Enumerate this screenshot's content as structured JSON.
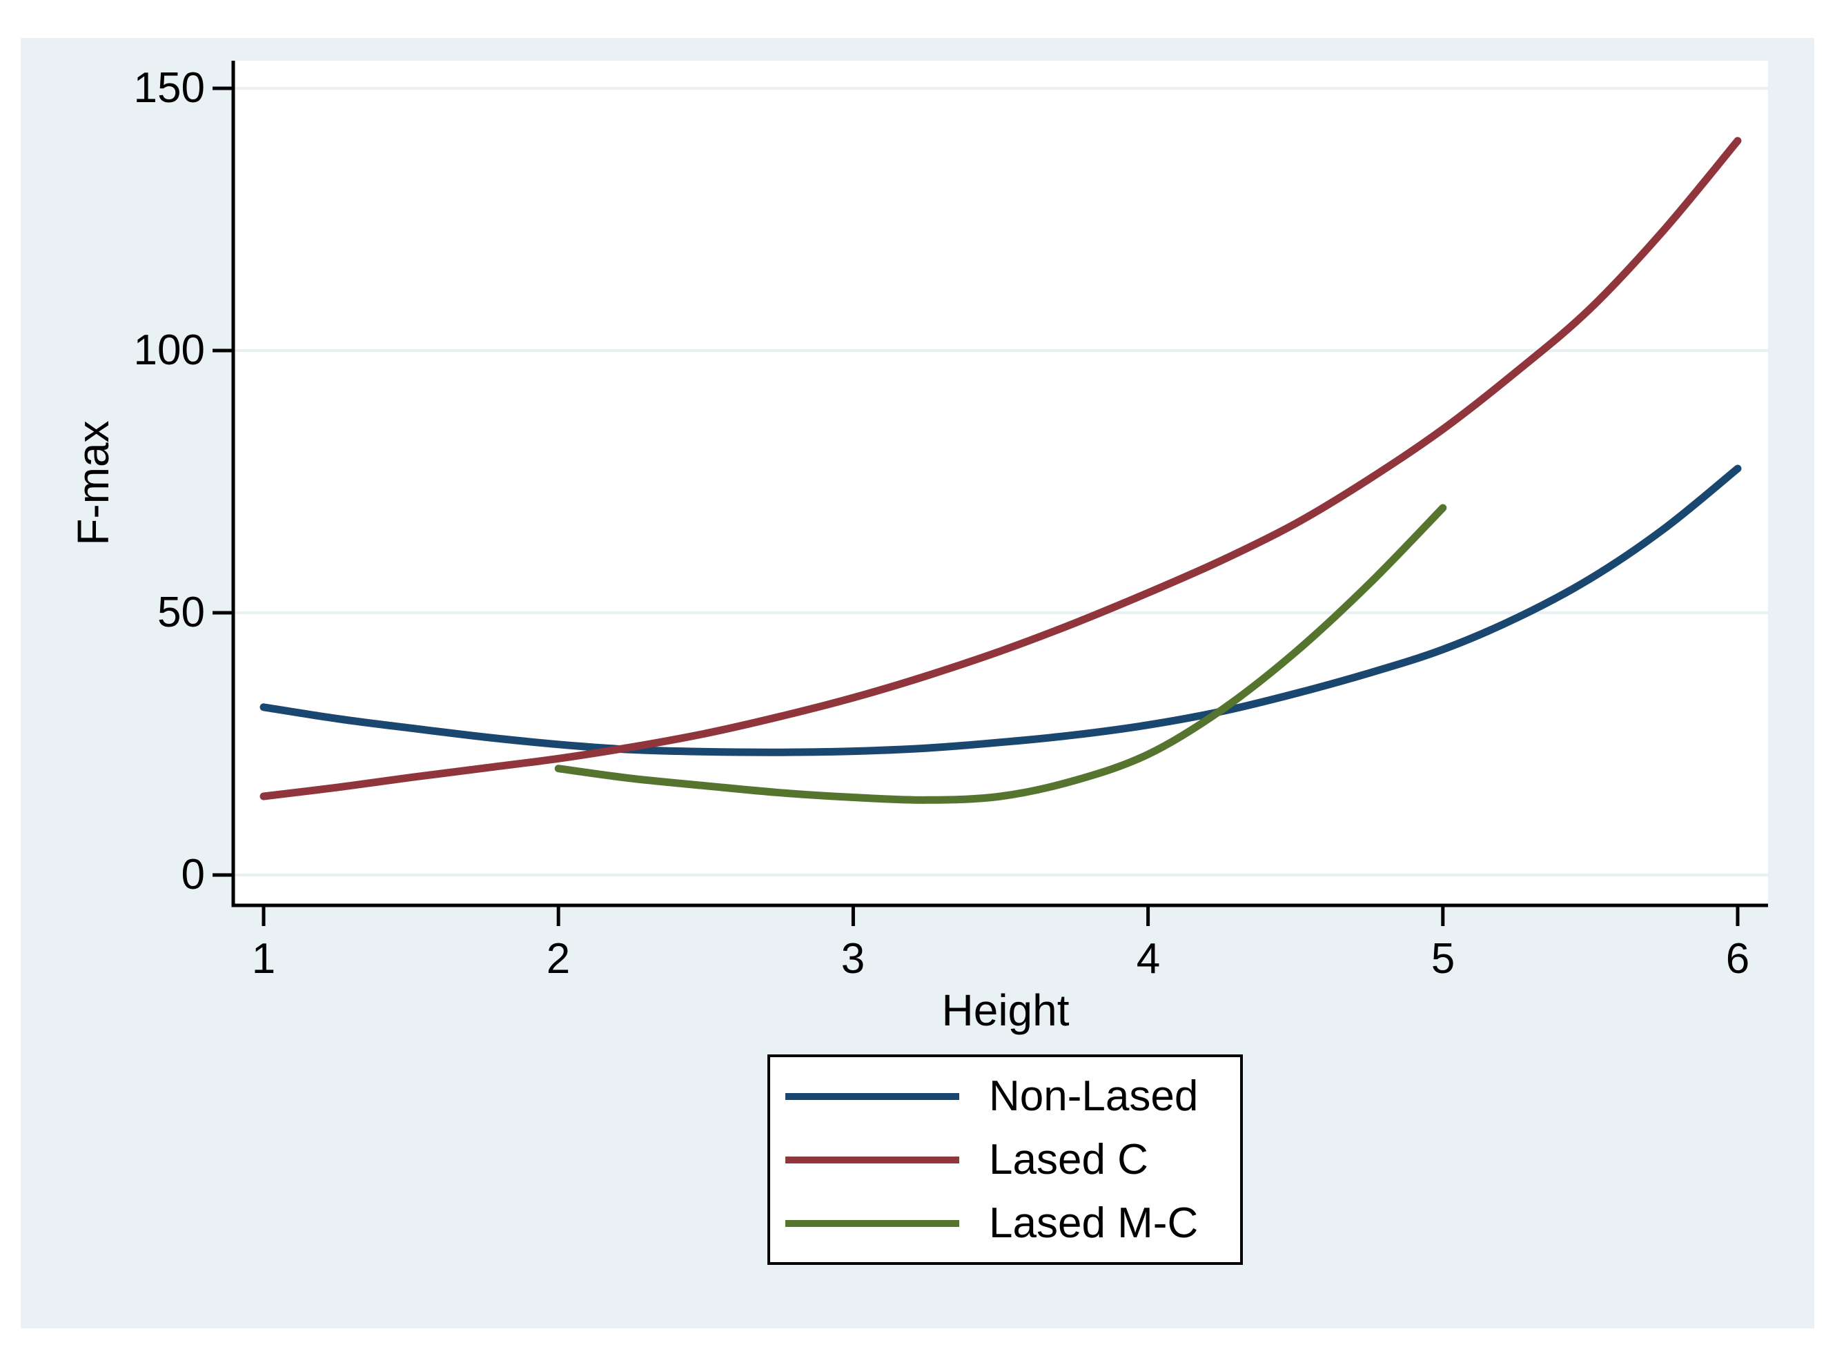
{
  "colors": {
    "canvas_background": "#eaf1f4",
    "plot_background": "#ffffff",
    "gridline": "#e8f0f3",
    "axis": "#000000",
    "text": "#000000",
    "legend_border": "#000000",
    "legend_background": "#ffffff",
    "series_navy": "#1a476f",
    "series_maroon": "#90353b",
    "series_olive": "#55752f"
  },
  "chart_data": {
    "type": "line",
    "title": "",
    "xlabel": "Height",
    "ylabel": "F-max",
    "x_ticks": [
      1,
      2,
      3,
      4,
      5,
      6
    ],
    "y_ticks": [
      0,
      50,
      100,
      150
    ],
    "xlim": [
      0.9,
      6.1
    ],
    "ylim": [
      -5.8,
      155.3
    ],
    "grid": "horizontal-light",
    "legend_position": "below-center-boxed",
    "series": [
      {
        "name": "Non-Lased",
        "color": "#1a476f",
        "points": [
          [
            1,
            32
          ],
          [
            1.25,
            29.8
          ],
          [
            1.5,
            28
          ],
          [
            1.75,
            26.3
          ],
          [
            2,
            24.9
          ],
          [
            2.25,
            23.9
          ],
          [
            2.5,
            23.5
          ],
          [
            2.75,
            23.4
          ],
          [
            3,
            23.6
          ],
          [
            3.25,
            24.2
          ],
          [
            3.5,
            25.3
          ],
          [
            3.75,
            26.7
          ],
          [
            4,
            28.6
          ],
          [
            4.25,
            31.2
          ],
          [
            4.5,
            34.6
          ],
          [
            4.75,
            38.5
          ],
          [
            5,
            43
          ],
          [
            5.25,
            49
          ],
          [
            5.5,
            56.5
          ],
          [
            5.75,
            66
          ],
          [
            6,
            77.5
          ]
        ]
      },
      {
        "name": "Lased C",
        "color": "#90353b",
        "points": [
          [
            1,
            15
          ],
          [
            1.25,
            16.7
          ],
          [
            1.5,
            18.6
          ],
          [
            1.75,
            20.4
          ],
          [
            2,
            22.2
          ],
          [
            2.25,
            24.4
          ],
          [
            2.5,
            27
          ],
          [
            2.75,
            30.2
          ],
          [
            3,
            33.8
          ],
          [
            3.25,
            38
          ],
          [
            3.5,
            42.7
          ],
          [
            3.75,
            48
          ],
          [
            4,
            53.8
          ],
          [
            4.25,
            60
          ],
          [
            4.5,
            67
          ],
          [
            4.75,
            75.5
          ],
          [
            5,
            85
          ],
          [
            5.25,
            96
          ],
          [
            5.5,
            108
          ],
          [
            5.75,
            123
          ],
          [
            6,
            140
          ]
        ]
      },
      {
        "name": "Lased M-C",
        "color": "#55752f",
        "points": [
          [
            2,
            20.3
          ],
          [
            2.25,
            18.4
          ],
          [
            2.5,
            17
          ],
          [
            2.75,
            15.7
          ],
          [
            3,
            14.8
          ],
          [
            3.25,
            14.3
          ],
          [
            3.5,
            15
          ],
          [
            3.75,
            18
          ],
          [
            4,
            23
          ],
          [
            4.25,
            31.5
          ],
          [
            4.5,
            42.5
          ],
          [
            4.75,
            55.5
          ],
          [
            5,
            70
          ]
        ]
      }
    ]
  }
}
